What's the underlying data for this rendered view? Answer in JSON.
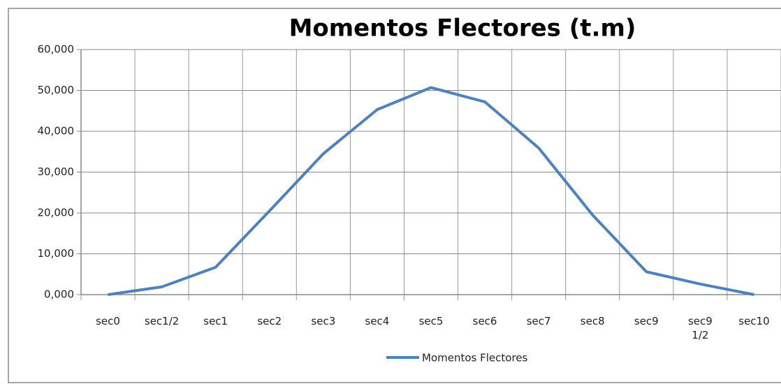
{
  "chart_data": {
    "type": "line",
    "title": "Momentos Flectores (t.m)",
    "categories": [
      "sec0",
      "sec1/2",
      "sec1",
      "sec2",
      "sec3",
      "sec4",
      "sec5",
      "sec6",
      "sec7",
      "sec8",
      "sec9",
      "sec9 1/2",
      "sec10"
    ],
    "series": [
      {
        "name": "Momentos Flectores",
        "color": "#4f81bd",
        "values": [
          0,
          1.9,
          6.7,
          20.5,
          34.5,
          45.3,
          50.7,
          47.2,
          35.9,
          19.5,
          5.6,
          2.6,
          0
        ]
      }
    ],
    "ylim": [
      0,
      60
    ],
    "yticks": [
      {
        "value": 0,
        "label": "0,000"
      },
      {
        "value": 10,
        "label": "10,000"
      },
      {
        "value": 20,
        "label": "20,000"
      },
      {
        "value": 30,
        "label": "30,000"
      },
      {
        "value": 40,
        "label": "40,000"
      },
      {
        "value": 50,
        "label": "50,000"
      },
      {
        "value": 60,
        "label": "60,000"
      }
    ],
    "grid": true,
    "legend": "bottom"
  }
}
